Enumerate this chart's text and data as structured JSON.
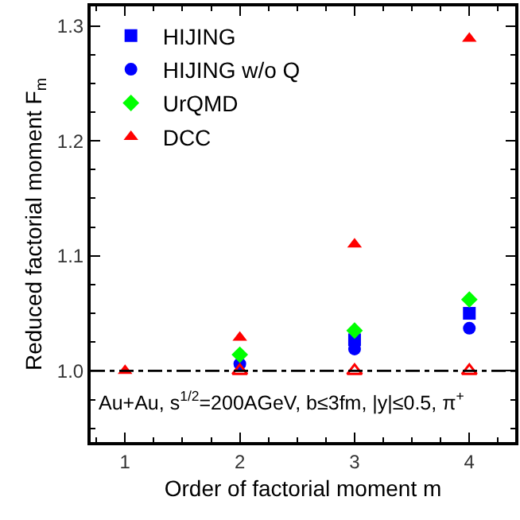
{
  "chart_data": {
    "type": "scatter",
    "xlabel": "Order of factorial moment m",
    "ylabel": "Reduced factorial moment F$_{m}$",
    "x": [
      1,
      2,
      3,
      4
    ],
    "series": [
      {
        "name": "HIJING",
        "color": "#0000ff",
        "marker": "square",
        "values": [
          null,
          null,
          1.027,
          1.05
        ]
      },
      {
        "name": "HIJING w/o Q",
        "color": "#0000ff",
        "marker": "circle",
        "values": [
          null,
          1.006,
          1.019,
          1.037
        ]
      },
      {
        "name": "UrQMD",
        "color": "#00ff00",
        "marker": "diamond",
        "values": [
          null,
          1.014,
          1.035,
          1.062
        ]
      },
      {
        "name": "DCC",
        "color": "#ff0000",
        "marker": "triangle",
        "values": [
          1.0,
          1.029,
          1.11,
          1.289
        ]
      },
      {
        "color": "#ff0000",
        "marker": "triangle-open",
        "values": [
          null,
          1.0,
          1.0,
          1.0
        ]
      }
    ],
    "xlim": [
      0.7,
      4.4
    ],
    "xticks": [
      1,
      2,
      3,
      4
    ],
    "ylim": [
      0.938,
      1.317
    ],
    "yticks": [
      {
        "value": 1.0,
        "label": "1.0"
      },
      {
        "value": 1.1,
        "label": "1.1"
      },
      {
        "value": 1.2,
        "label": "1.2"
      },
      {
        "value": 1.3,
        "label": "1.3"
      }
    ],
    "ref_lines": [
      {
        "axis": "y",
        "value": 1.0,
        "color": "#000000",
        "line_style": "dashdot"
      }
    ],
    "annotations": [
      "Au+Au, s$^{1/2}$=200AGeV, b≤3fm, |y|≤0.5, π$^{+}$"
    ],
    "legend": "top left",
    "grid": false
  }
}
